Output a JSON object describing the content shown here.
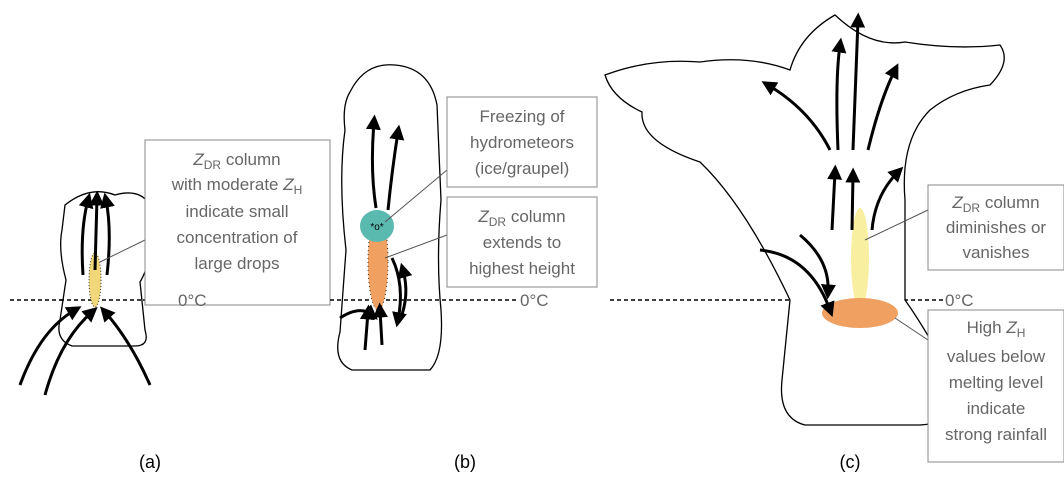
{
  "panels": [
    {
      "label": "(a)",
      "freezing_level": "0°C",
      "annotations": [
        {
          "lines": [
            [
              "Z",
              "DR",
              " column"
            ],
            [
              "with moderate ",
              "Z",
              "H"
            ],
            [
              "indicate small"
            ],
            [
              "concentration of"
            ],
            [
              "large drops"
            ]
          ]
        }
      ]
    },
    {
      "label": "(b)",
      "freezing_level": "0°C",
      "annotations": [
        {
          "lines": [
            [
              "Freezing of"
            ],
            [
              "hydrometeors"
            ],
            [
              "(ice/graupel)"
            ]
          ]
        },
        {
          "lines": [
            [
              "Z",
              "DR",
              " column"
            ],
            [
              "extends to"
            ],
            [
              "highest height"
            ]
          ]
        }
      ]
    },
    {
      "label": "(c)",
      "freezing_level": "0°C",
      "annotations": [
        {
          "lines": [
            [
              "Z",
              "DR",
              " column"
            ],
            [
              "diminishes or"
            ],
            [
              "vanishes"
            ]
          ]
        },
        {
          "lines": [
            [
              "High ",
              "Z",
              "H"
            ],
            [
              "values below"
            ],
            [
              "melting level"
            ],
            [
              "indicate"
            ],
            [
              "strong rainfall"
            ]
          ]
        }
      ]
    }
  ]
}
